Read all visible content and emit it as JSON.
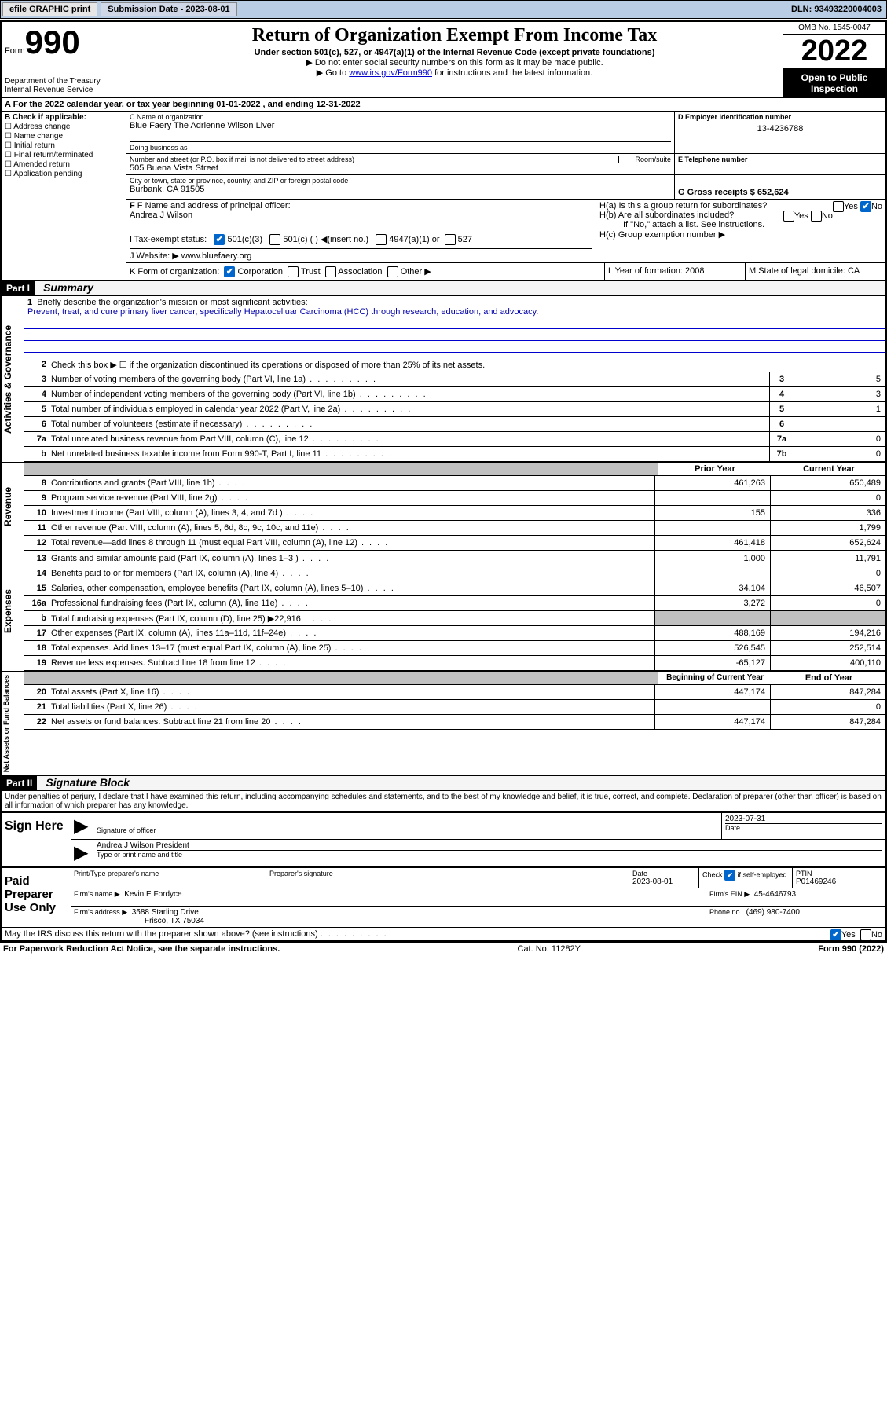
{
  "topbar": {
    "btn1": "efile GRAPHIC print",
    "sub_label": "Submission Date - 2023-08-01",
    "dln": "DLN: 93493220004003"
  },
  "header": {
    "form_word": "Form",
    "form_num": "990",
    "dept": "Department of the Treasury",
    "irs": "Internal Revenue Service",
    "title": "Return of Organization Exempt From Income Tax",
    "sub1": "Under section 501(c), 527, or 4947(a)(1) of the Internal Revenue Code (except private foundations)",
    "sub2": "▶ Do not enter social security numbers on this form as it may be made public.",
    "sub3_pre": "▶ Go to ",
    "sub3_link": "www.irs.gov/Form990",
    "sub3_post": " for instructions and the latest information.",
    "omb": "OMB No. 1545-0047",
    "year": "2022",
    "inspection1": "Open to Public",
    "inspection2": "Inspection"
  },
  "rowA": "A For the 2022 calendar year, or tax year beginning 01-01-2022   , and ending 12-31-2022",
  "colB": {
    "title": "B Check if applicable:",
    "items": [
      "Address change",
      "Name change",
      "Initial return",
      "Final return/terminated",
      "Amended return",
      "Application pending"
    ]
  },
  "colC": {
    "label": "C Name of organization",
    "name": "Blue Faery The Adrienne Wilson Liver",
    "dba_label": "Doing business as",
    "addr_label": "Number and street (or P.O. box if mail is not delivered to street address)",
    "room_label": "Room/suite",
    "addr": "505 Buena Vista Street",
    "city_label": "City or town, state or province, country, and ZIP or foreign postal code",
    "city": "Burbank, CA  91505"
  },
  "colD": {
    "label": "D Employer identification number",
    "val": "13-4236788"
  },
  "colE": {
    "label": "E Telephone number"
  },
  "colG": {
    "label": "G Gross receipts $ 652,624"
  },
  "colF": {
    "label": "F Name and address of principal officer:",
    "name": "Andrea J Wilson"
  },
  "colH": {
    "a": "H(a)  Is this a group return for subordinates?",
    "b": "H(b)  Are all subordinates included?",
    "b2": "If \"No,\" attach a list. See instructions.",
    "c": "H(c)  Group exemption number ▶"
  },
  "rowI": {
    "label": "I    Tax-exempt status:",
    "opt1": "501(c)(3)",
    "opt2": "501(c) (  ) ◀(insert no.)",
    "opt3": "4947(a)(1) or",
    "opt4": "527"
  },
  "rowJ": {
    "label": "J   Website: ▶ ",
    "val": "www.bluefaery.org"
  },
  "rowK": {
    "label": "K Form of organization:",
    "opts": [
      "Corporation",
      "Trust",
      "Association",
      "Other ▶"
    ]
  },
  "rowL": "L Year of formation: 2008",
  "rowM": "M State of legal domicile: CA",
  "part1": {
    "header": "Part I",
    "title": "Summary"
  },
  "mission": {
    "num": "1",
    "label": "Briefly describe the organization's mission or most significant activities:",
    "text": "Prevent, treat, and cure primary liver cancer, specifically Hepatocelluar Carcinoma (HCC) through research, education, and advocacy."
  },
  "side_labels": {
    "gov": "Activities & Governance",
    "rev": "Revenue",
    "exp": "Expenses",
    "net": "Net Assets or Fund Balances"
  },
  "gov_lines": [
    {
      "n": "2",
      "d": "Check this box ▶ ☐  if the organization discontinued its operations or disposed of more than 25% of its net assets.",
      "box": "",
      "v": ""
    },
    {
      "n": "3",
      "d": "Number of voting members of the governing body (Part VI, line 1a)",
      "box": "3",
      "v": "5"
    },
    {
      "n": "4",
      "d": "Number of independent voting members of the governing body (Part VI, line 1b)",
      "box": "4",
      "v": "3"
    },
    {
      "n": "5",
      "d": "Total number of individuals employed in calendar year 2022 (Part V, line 2a)",
      "box": "5",
      "v": "1"
    },
    {
      "n": "6",
      "d": "Total number of volunteers (estimate if necessary)",
      "box": "6",
      "v": ""
    },
    {
      "n": "7a",
      "d": "Total unrelated business revenue from Part VIII, column (C), line 12",
      "box": "7a",
      "v": "0"
    },
    {
      "n": "b",
      "d": "Net unrelated business taxable income from Form 990-T, Part I, line 11",
      "box": "7b",
      "v": "0"
    }
  ],
  "col_hdr": {
    "prior": "Prior Year",
    "curr": "Current Year"
  },
  "rev_lines": [
    {
      "n": "8",
      "d": "Contributions and grants (Part VIII, line 1h)",
      "p": "461,263",
      "c": "650,489"
    },
    {
      "n": "9",
      "d": "Program service revenue (Part VIII, line 2g)",
      "p": "",
      "c": "0"
    },
    {
      "n": "10",
      "d": "Investment income (Part VIII, column (A), lines 3, 4, and 7d )",
      "p": "155",
      "c": "336"
    },
    {
      "n": "11",
      "d": "Other revenue (Part VIII, column (A), lines 5, 6d, 8c, 9c, 10c, and 11e)",
      "p": "",
      "c": "1,799"
    },
    {
      "n": "12",
      "d": "Total revenue—add lines 8 through 11 (must equal Part VIII, column (A), line 12)",
      "p": "461,418",
      "c": "652,624"
    }
  ],
  "exp_lines": [
    {
      "n": "13",
      "d": "Grants and similar amounts paid (Part IX, column (A), lines 1–3 )",
      "p": "1,000",
      "c": "11,791"
    },
    {
      "n": "14",
      "d": "Benefits paid to or for members (Part IX, column (A), line 4)",
      "p": "",
      "c": "0"
    },
    {
      "n": "15",
      "d": "Salaries, other compensation, employee benefits (Part IX, column (A), lines 5–10)",
      "p": "34,104",
      "c": "46,507"
    },
    {
      "n": "16a",
      "d": "Professional fundraising fees (Part IX, column (A), line 11e)",
      "p": "3,272",
      "c": "0"
    },
    {
      "n": "b",
      "d": "Total fundraising expenses (Part IX, column (D), line 25) ▶22,916",
      "p": "gray",
      "c": "gray"
    },
    {
      "n": "17",
      "d": "Other expenses (Part IX, column (A), lines 11a–11d, 11f–24e)",
      "p": "488,169",
      "c": "194,216"
    },
    {
      "n": "18",
      "d": "Total expenses. Add lines 13–17 (must equal Part IX, column (A), line 25)",
      "p": "526,545",
      "c": "252,514"
    },
    {
      "n": "19",
      "d": "Revenue less expenses. Subtract line 18 from line 12",
      "p": "-65,127",
      "c": "400,110"
    }
  ],
  "net_hdr": {
    "prior": "Beginning of Current Year",
    "curr": "End of Year"
  },
  "net_lines": [
    {
      "n": "20",
      "d": "Total assets (Part X, line 16)",
      "p": "447,174",
      "c": "847,284"
    },
    {
      "n": "21",
      "d": "Total liabilities (Part X, line 26)",
      "p": "",
      "c": "0"
    },
    {
      "n": "22",
      "d": "Net assets or fund balances. Subtract line 21 from line 20",
      "p": "447,174",
      "c": "847,284"
    }
  ],
  "part2": {
    "header": "Part II",
    "title": "Signature Block"
  },
  "sig": {
    "penalty": "Under penalties of perjury, I declare that I have examined this return, including accompanying schedules and statements, and to the best of my knowledge and belief, it is true, correct, and complete. Declaration of preparer (other than officer) is based on all information of which preparer has any knowledge.",
    "sign_here": "Sign Here",
    "sig_officer": "Signature of officer",
    "date": "Date",
    "date_val": "2023-07-31",
    "name_title": "Andrea J Wilson  President",
    "type_name": "Type or print name and title",
    "paid": "Paid Preparer Use Only",
    "prep_name_label": "Print/Type preparer's name",
    "prep_sig_label": "Preparer's signature",
    "prep_date_label": "Date",
    "prep_date": "2023-08-01",
    "check_self": "Check ☑ if self-employed",
    "ptin_label": "PTIN",
    "ptin": "P01469246",
    "firm_name_label": "Firm's name    ▶",
    "firm_name": "Kevin E Fordyce",
    "firm_ein_label": "Firm's EIN ▶",
    "firm_ein": "45-4646793",
    "firm_addr_label": "Firm's address ▶",
    "firm_addr1": "3588 Starling Drive",
    "firm_addr2": "Frisco, TX  75034",
    "phone_label": "Phone no.",
    "phone": "(469) 980-7400",
    "may_irs": "May the IRS discuss this return with the preparer shown above? (see instructions)"
  },
  "footer": {
    "left": "For Paperwork Reduction Act Notice, see the separate instructions.",
    "mid": "Cat. No. 11282Y",
    "right": "Form 990 (2022)"
  },
  "yes": "Yes",
  "no": "No"
}
